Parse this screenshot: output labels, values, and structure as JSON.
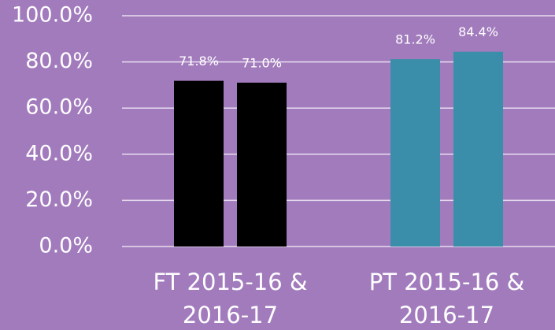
{
  "chart_data": {
    "type": "bar",
    "categories": [
      "FT 2015-16 & 2016-17",
      "PT 2015-16 & 2016-17"
    ],
    "values": [
      [
        71.8,
        71.0
      ],
      [
        81.2,
        84.4
      ]
    ],
    "value_labels": [
      [
        "71.8%",
        "71.0%"
      ],
      [
        "81.2%",
        "84.4%"
      ]
    ],
    "colors": [
      "#000000",
      "#3b8ea9"
    ],
    "ylim": [
      0,
      100
    ],
    "yticks": [
      {
        "value": 0,
        "label": "0.0%"
      },
      {
        "value": 20,
        "label": "20.0%"
      },
      {
        "value": 40,
        "label": "40.0%"
      },
      {
        "value": 60,
        "label": "60.0%"
      },
      {
        "value": 80,
        "label": "80.0%"
      },
      {
        "value": 100,
        "label": "100.0%"
      }
    ],
    "grid": true
  }
}
